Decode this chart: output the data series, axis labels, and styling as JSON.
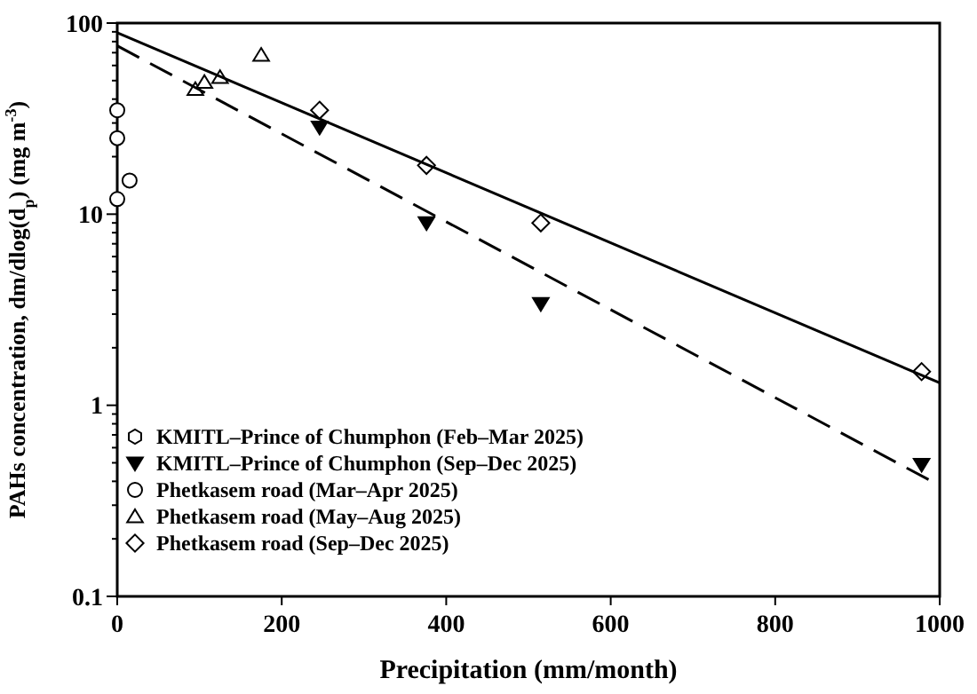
{
  "chart_data": {
    "type": "scatter",
    "xlabel": "Precipitation  (mm/month)",
    "ylabel": "PAHs concentration, dm/dlog(d$_{p}$)  (mg m$^{-3}$)",
    "log": "y",
    "xlim": [
      0,
      1000
    ],
    "xticks": [
      0,
      200,
      400,
      600,
      800,
      1000
    ],
    "ylim": [
      0.1,
      100
    ],
    "yticks": [
      0.1,
      {
        "value": 0.2,
        "label": null
      },
      {
        "value": 0.3,
        "label": null
      },
      {
        "value": 0.4,
        "label": null
      },
      {
        "value": 0.5,
        "label": null
      },
      {
        "value": 0.6,
        "label": null
      },
      {
        "value": 0.7,
        "label": null
      },
      {
        "value": 0.8,
        "label": null
      },
      {
        "value": 0.9,
        "label": null
      },
      1,
      {
        "value": 2,
        "label": null
      },
      {
        "value": 3,
        "label": null
      },
      {
        "value": 4,
        "label": null
      },
      {
        "value": 5,
        "label": null
      },
      {
        "value": 6,
        "label": null
      },
      {
        "value": 7,
        "label": null
      },
      {
        "value": 8,
        "label": null
      },
      {
        "value": 9,
        "label": null
      },
      10,
      {
        "value": 20,
        "label": null
      },
      {
        "value": 30,
        "label": null
      },
      {
        "value": 40,
        "label": null
      },
      {
        "value": 50,
        "label": null
      },
      {
        "value": 60,
        "label": null
      },
      {
        "value": 70,
        "label": null
      },
      {
        "value": 80,
        "label": null
      },
      {
        "value": 90,
        "label": null
      },
      100
    ],
    "grid": false,
    "legend": "bottom left",
    "series": [
      {
        "name": "KMITL–Prince of Chumphon  (Feb–Mar 2025)",
        "color": "#000000",
        "marker": "hexagon"
      },
      {
        "name": "KMITL–Prince of Chumphon  (Sep–Dec 2025)",
        "color": "#000000",
        "marker": "triangle-down",
        "x": [
          246,
          376,
          515,
          978
        ],
        "values": [
          28.5,
          9,
          3.4,
          0.49
        ]
      },
      {
        "name": "Phetkasem road (Mar–Apr 2025)",
        "color": "#000000",
        "marker": "circle",
        "x": [
          0,
          0,
          15,
          0
        ],
        "values": [
          35,
          25,
          15,
          12
        ]
      },
      {
        "name": "Phetkasem road (May–Aug 2025)",
        "color": "#000000",
        "marker": "triangle",
        "x": [
          95,
          106,
          125,
          175
        ],
        "values": [
          45,
          49,
          52,
          68
        ]
      },
      {
        "name": "Phetkasem road (Sep–Dec 2025)",
        "color": "#000000",
        "marker": "diamond",
        "x": [
          246,
          376,
          515,
          978
        ],
        "values": [
          35,
          18,
          9,
          1.5
        ]
      },
      {
        "type": "line",
        "color": "#000000",
        "line_style": "solid",
        "x": [
          0,
          1000
        ],
        "values": [
          89,
          1.31
        ]
      },
      {
        "type": "line",
        "color": "#000000",
        "line_style": "dashed",
        "x": [
          0,
          1000
        ],
        "values": [
          76,
          0.38
        ]
      }
    ]
  }
}
